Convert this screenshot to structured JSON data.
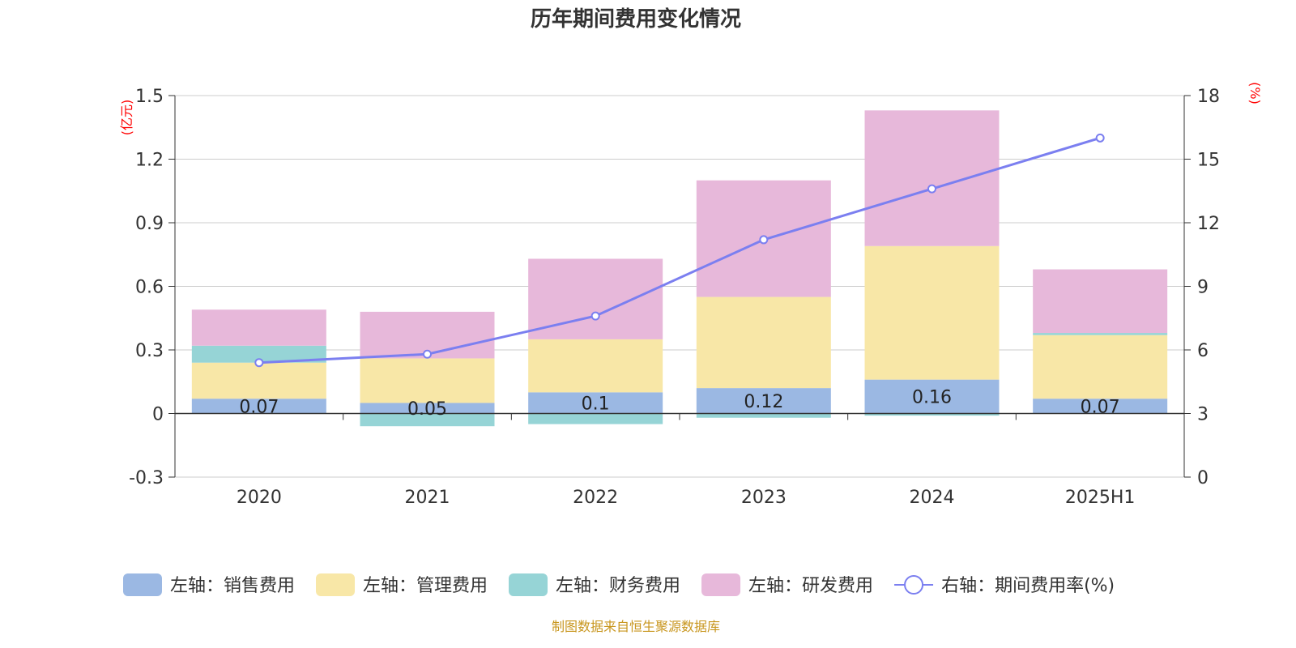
{
  "chart_data": {
    "type": "bar",
    "title": "历年期间费用变化情况",
    "left_unit": "(亿元)",
    "right_unit": "(%)",
    "categories": [
      "2020",
      "2021",
      "2022",
      "2023",
      "2024",
      "2025H1"
    ],
    "left_axis": {
      "ticks": [
        "1.5",
        "1.2",
        "0.9",
        "0.6",
        "0.3",
        "0",
        "-0.3"
      ],
      "ylim": [
        -0.3,
        1.5
      ]
    },
    "right_axis": {
      "ticks": [
        "18",
        "15",
        "12",
        "9",
        "6",
        "3",
        "0"
      ],
      "ylim": [
        0,
        18
      ]
    },
    "series": [
      {
        "name": "左轴：销售费用",
        "type": "bar",
        "color": "#9bb8e3",
        "values": [
          0.07,
          0.05,
          0.1,
          0.12,
          0.16,
          0.07
        ]
      },
      {
        "name": "左轴：管理费用",
        "type": "bar",
        "color": "#f8e7a7",
        "values": [
          0.17,
          0.21,
          0.25,
          0.43,
          0.63,
          0.3
        ]
      },
      {
        "name": "左轴：财务费用",
        "type": "bar",
        "color": "#96d4d6",
        "values": [
          0.08,
          -0.06,
          -0.05,
          -0.02,
          -0.01,
          0.01
        ]
      },
      {
        "name": "左轴：研发费用",
        "type": "bar",
        "color": "#e7b8da",
        "values": [
          0.17,
          0.22,
          0.38,
          0.55,
          0.64,
          0.3
        ]
      },
      {
        "name": "右轴：期间费用率(%)",
        "type": "line",
        "axis": "right",
        "color": "#7b7ff0",
        "values": [
          5.4,
          5.8,
          7.6,
          11.2,
          13.6,
          16.0
        ]
      }
    ],
    "data_labels": [
      "0.07",
      "0.05",
      "0.1",
      "0.12",
      "0.16",
      "0.07"
    ],
    "grid": true,
    "legend_position": "bottom"
  },
  "footer": {
    "source": "制图数据来自恒生聚源数据库"
  }
}
